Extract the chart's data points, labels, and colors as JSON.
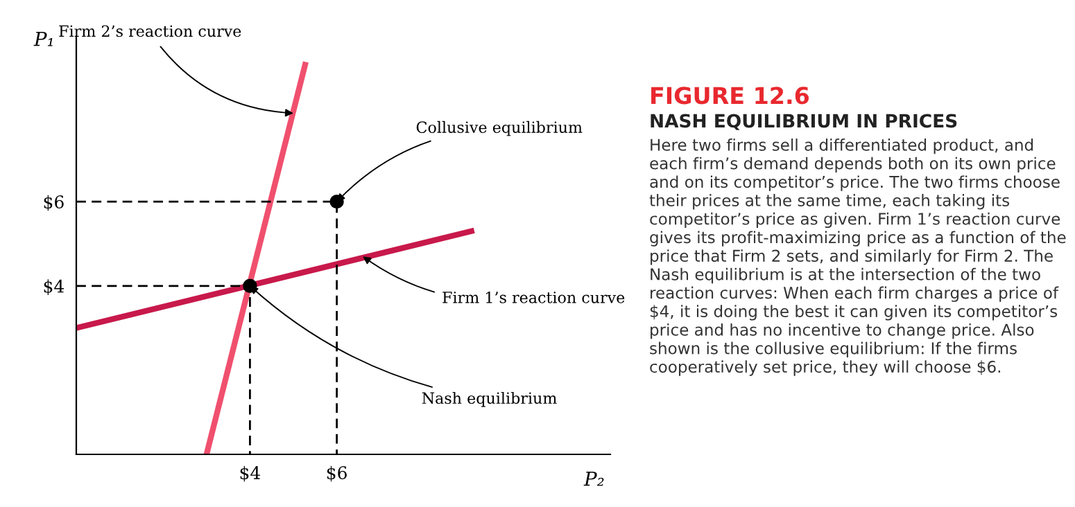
{
  "chart_data": {
    "type": "line",
    "title": "FIGURE 12.6",
    "subtitle": "NASH EQUILIBRIUM IN PRICES",
    "xlabel": "P₂",
    "ylabel": "P₁",
    "xlim": [
      0,
      12.3
    ],
    "ylim": [
      0,
      9.9
    ],
    "xticks": [
      {
        "value": 4,
        "label": "$4"
      },
      {
        "value": 6,
        "label": "$6"
      }
    ],
    "yticks": [
      {
        "value": 4,
        "label": "$4"
      },
      {
        "value": 6,
        "label": "$6"
      }
    ],
    "grid": false,
    "series": [
      {
        "color": "#c8194b",
        "x": [
          0,
          9.1
        ],
        "values": [
          3,
          5.3
        ]
      },
      {
        "color": "#f0506e",
        "x": [
          3.0,
          5.27
        ],
        "values": [
          0,
          9.25
        ]
      },
      {
        "color": "#000000",
        "line_style": "dashed",
        "x": [
          0,
          4,
          4
        ],
        "values": [
          4,
          4,
          0
        ]
      },
      {
        "color": "#000000",
        "line_style": "dashed",
        "x": [
          0,
          6,
          6
        ],
        "values": [
          6,
          6,
          0
        ]
      },
      {
        "type": "scatter",
        "color": "#000000",
        "marker": "circle",
        "x": [
          4,
          6
        ],
        "values": [
          4,
          6
        ]
      }
    ],
    "annotations": [
      {
        "text": "Firm 2’s reaction curve",
        "x": 5.0,
        "y": 8.1
      },
      {
        "text": "Collusive equilibrium",
        "x": 6,
        "y": 6
      },
      {
        "text": "Firm 1’s reaction curve",
        "x": 6.6,
        "y": 4.7
      },
      {
        "text": "Nash equilibrium",
        "x": 4,
        "y": 4
      },
      "Here two firms sell a differentiated product, and each firm’s demand depends both on its own price and on its competitor’s price. The two firms choose their prices at the same time, each taking its competitor’s price as given. Firm 1’s reaction curve gives its profit-maximizing price as a function of the price that Firm 2 sets, and similarly for Firm 2. The Nash equilibrium is at the intersection of the two reaction curves: When each firm charges a price of $4, it is doing the best it can given its competitor’s price and has no incentive to change price. Also shown is the collusive equilibrium: If the firms cooperatively set price, they will choose $6."
    ]
  }
}
